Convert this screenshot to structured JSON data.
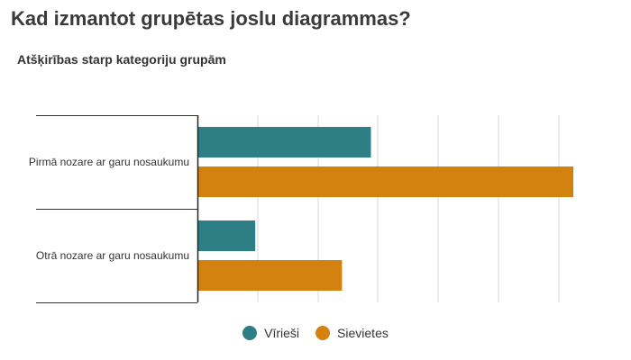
{
  "title": "Kad izmantot grupētas joslu diagrammas?",
  "subtitle": "Atšķirības starp kategoriju grupām",
  "chart_data": {
    "type": "bar",
    "orientation": "horizontal",
    "categories": [
      "Pirmā nozare ar garu nosaukumu",
      "Otrā nozare ar garu nosaukumu"
    ],
    "series": [
      {
        "name": "Vīrieši",
        "values": [
          30,
          10
        ],
        "color": "#2e7e85"
      },
      {
        "name": "Sievietes",
        "values": [
          65,
          25
        ],
        "color": "#d4820f"
      }
    ],
    "xlim": [
      0,
      65
    ],
    "grid": true,
    "legend": "bottom-center"
  }
}
